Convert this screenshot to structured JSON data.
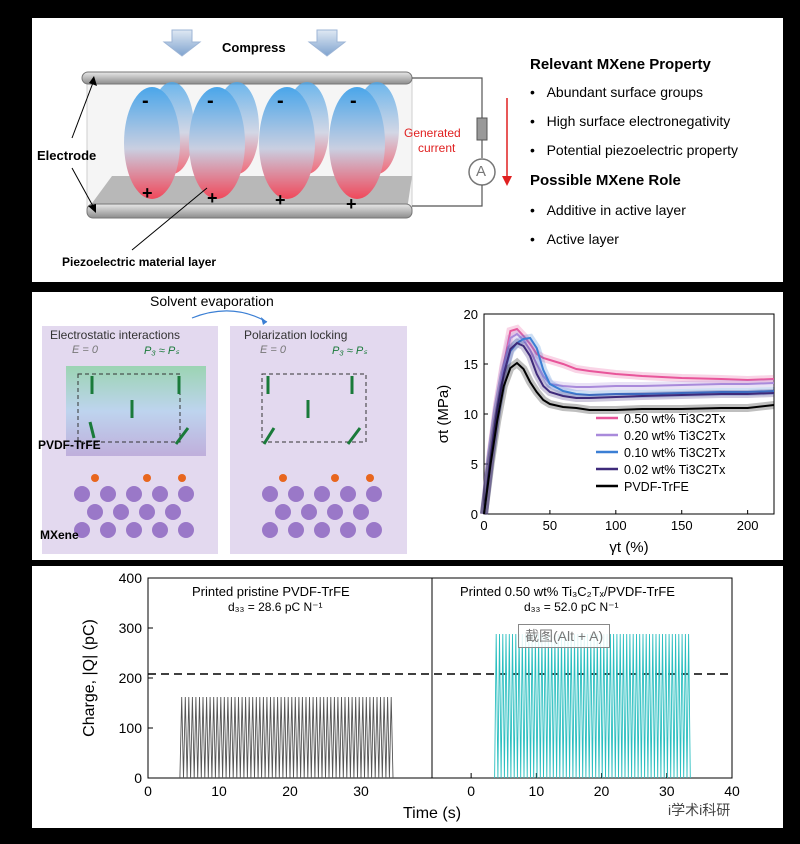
{
  "piezo_diagram": {
    "compress_label": "Compress",
    "electrode_label": "Electrode",
    "layer_label": "Piezoelectric material layer",
    "current_label_line1": "Generated",
    "current_label_line2": "current",
    "ammeter_symbol": "A",
    "minus": "-",
    "plus": "+"
  },
  "mxene_property": {
    "heading": "Relevant MXene Property",
    "items": [
      "Abundant surface groups",
      "High surface electronegativity",
      "Potential piezoelectric property"
    ]
  },
  "mxene_role": {
    "heading": "Possible MXene Role",
    "items": [
      "Additive in active layer",
      "Active layer"
    ]
  },
  "mechanism": {
    "solvent": "Solvent evaporation",
    "left_title": "Electrostatic interactions",
    "right_title": "Polarization locking",
    "e_label": "E = 0",
    "p_label": "P₃ ≈ Pₛ",
    "pvdf_label": "PVDF-TrFE",
    "mxene_label": "MXene"
  },
  "stress_strain_chart": {
    "chart_data": {
      "type": "line",
      "xlabel": "γt (%)",
      "ylabel": "σt (MPa)",
      "xlim": [
        0,
        220
      ],
      "ylim": [
        0,
        20
      ],
      "xticks": [
        "0",
        "50",
        "100",
        "150",
        "200"
      ],
      "yticks": [
        "0",
        "5",
        "10",
        "15",
        "20"
      ],
      "legend_position": "bottom-right",
      "grid": false,
      "series": [
        {
          "name": "0.50 wt% Ti3C2Tx",
          "color": "#e8559a",
          "x": [
            0,
            5,
            10,
            15,
            20,
            25,
            30,
            35,
            40,
            45,
            50,
            60,
            70,
            80,
            100,
            120,
            150,
            180,
            200,
            220
          ],
          "y": [
            0,
            6,
            11,
            15,
            18.3,
            18.5,
            17.8,
            17,
            16,
            15.6,
            15.4,
            15,
            14.5,
            14.3,
            14,
            13.8,
            13.6,
            13.5,
            13.4,
            13.5
          ]
        },
        {
          "name": "0.20 wt% Ti3C2Tx",
          "color": "#a98adb",
          "x": [
            0,
            5,
            10,
            15,
            20,
            25,
            30,
            35,
            40,
            45,
            50,
            60,
            70,
            80,
            100,
            120,
            150,
            180,
            200,
            220
          ],
          "y": [
            0,
            5.8,
            10.8,
            14.8,
            17.6,
            18,
            17.4,
            16.4,
            15,
            13.8,
            13,
            12.8,
            12.7,
            12.7,
            12.8,
            12.8,
            12.9,
            13,
            13,
            13.1
          ]
        },
        {
          "name": "0.10 wt% Ti3C2Tx",
          "color": "#3b7fd4",
          "x": [
            0,
            5,
            10,
            15,
            20,
            25,
            30,
            35,
            40,
            45,
            50,
            60,
            70,
            80,
            100,
            120,
            150,
            180,
            200,
            220
          ],
          "y": [
            0,
            5.6,
            10.4,
            14,
            16.3,
            17.1,
            17.5,
            17.6,
            16.6,
            14.4,
            13,
            12.3,
            12,
            11.9,
            12,
            12,
            12.1,
            12.2,
            12.2,
            12.3
          ]
        },
        {
          "name": "0.02 wt% Ti3C2Tx",
          "color": "#3e2a7a",
          "x": [
            0,
            5,
            10,
            15,
            20,
            25,
            30,
            35,
            40,
            45,
            50,
            60,
            70,
            80,
            100,
            120,
            150,
            180,
            200,
            220
          ],
          "y": [
            0,
            5.6,
            10.4,
            14,
            16.5,
            17.1,
            16.8,
            15.8,
            14,
            12.8,
            12.2,
            11.8,
            11.6,
            11.6,
            11.7,
            11.8,
            11.9,
            12,
            12,
            12.1
          ]
        },
        {
          "name": "PVDF-TrFE",
          "color": "#000000",
          "x": [
            0,
            5,
            10,
            15,
            20,
            25,
            30,
            35,
            40,
            45,
            50,
            60,
            70,
            80,
            100,
            120,
            150,
            180,
            200,
            220
          ],
          "y": [
            0,
            5,
            9.3,
            12.8,
            14.6,
            15.1,
            14.5,
            13.2,
            12.2,
            11.4,
            11,
            10.7,
            10.6,
            10.4,
            10.4,
            10.5,
            10.5,
            10.6,
            10.6,
            10.9
          ]
        }
      ]
    }
  },
  "charge_chart": {
    "chart_data": {
      "type": "line",
      "xlabel": "Time (s)",
      "ylabel": "Charge, |Q| (pC)",
      "ylim": [
        0,
        400
      ],
      "yticks": [
        "0",
        "100",
        "200",
        "300",
        "400"
      ],
      "xticks_left": [
        "0",
        "10",
        "20",
        "30"
      ],
      "xticks_right": [
        "0",
        "10",
        "20",
        "30",
        "40"
      ],
      "dashed_reference_y": 208,
      "grid": false,
      "series": [
        {
          "name": "Printed pristine PVDF-TrFE",
          "subtitle": "d₃₃ = 28.6 pC N⁻¹",
          "color": "#555555",
          "xlim": [
            0,
            40
          ],
          "x_start": 4.5,
          "x_end": 34.5,
          "period_s": 0.5,
          "peak": 162
        },
        {
          "name": "Printed 0.50 wt% Ti₃C₂Tₓ/PVDF-TrFE",
          "subtitle": "d₃₃ = 52.0 pC N⁻¹",
          "color": "#2bbfc0",
          "xlim": [
            -6,
            40
          ],
          "x_start": 3.6,
          "x_end": 33.6,
          "period_s": 0.5,
          "peak": 288
        }
      ]
    }
  },
  "watermark": {
    "screenshot_hint": "截图(Alt + A)",
    "brand": "i学术i科研"
  }
}
